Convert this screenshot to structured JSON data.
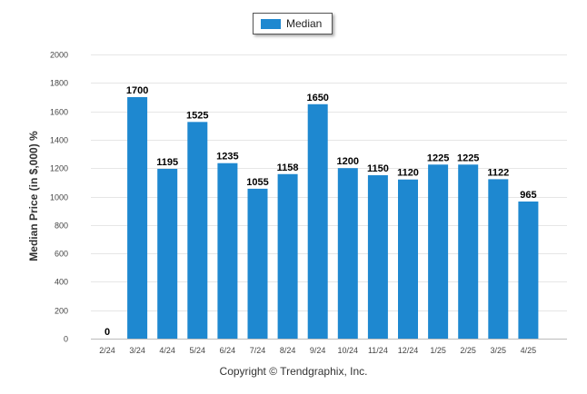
{
  "chart_data": {
    "type": "bar",
    "categories": [
      "2/24",
      "3/24",
      "4/24",
      "5/24",
      "6/24",
      "7/24",
      "8/24",
      "9/24",
      "10/24",
      "11/24",
      "12/24",
      "1/25",
      "2/25",
      "3/25",
      "4/25"
    ],
    "series": [
      {
        "name": "Median",
        "values": [
          0,
          1700,
          1195,
          1525,
          1235,
          1055,
          1158,
          1650,
          1200,
          1150,
          1120,
          1225,
          1225,
          1122,
          965
        ]
      }
    ],
    "data_labels": [
      "0",
      "1700",
      "1195",
      "1525",
      "1235",
      "1055",
      "1158",
      "1650",
      "1200",
      "1150",
      "1120",
      "1225",
      "1225",
      "1122",
      "965"
    ],
    "yticks": [
      0,
      200,
      400,
      600,
      800,
      1000,
      1200,
      1400,
      1600,
      1800,
      2000
    ],
    "ylim": [
      0,
      2000
    ],
    "ylabel": "Median Price (in $,000) %",
    "grid": true,
    "legend_position": "top-center",
    "bar_color": "#1e88d0",
    "footer": "Copyright © Trendgraphix, Inc."
  }
}
